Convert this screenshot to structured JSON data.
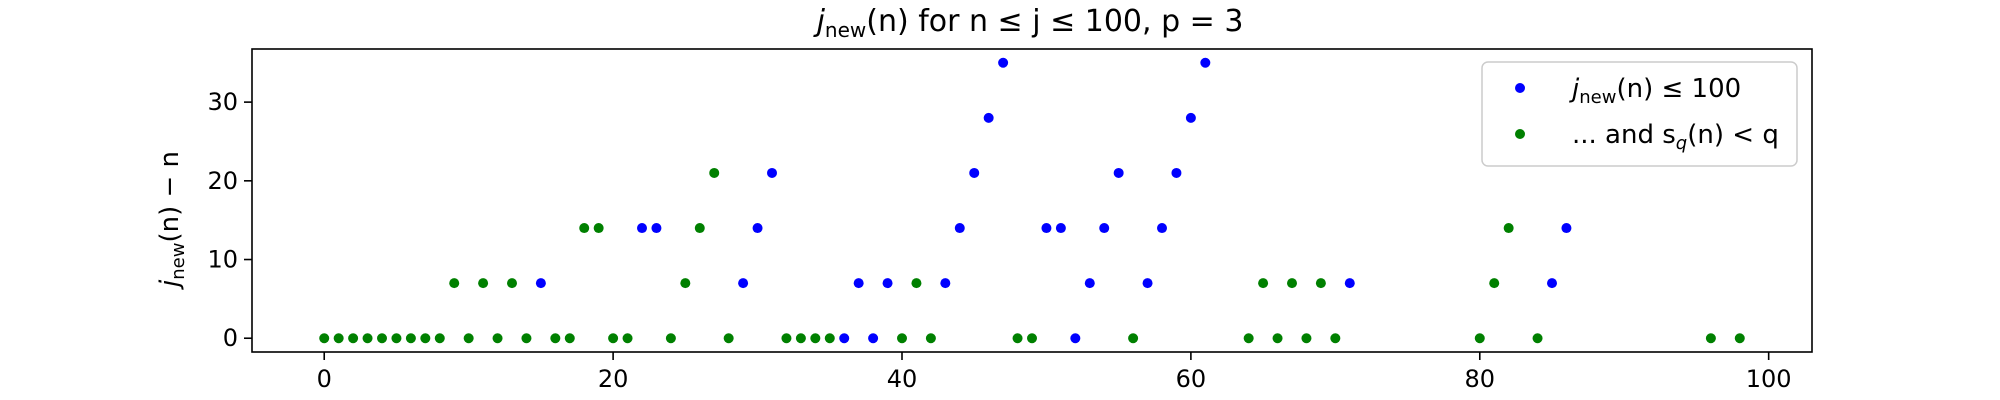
{
  "chart_data": {
    "type": "scatter",
    "title_parts": {
      "j": "j",
      "sub_new": "new",
      "rest": "(n) for n ≤ j ≤ 100, p = 3"
    },
    "ylabel_parts": {
      "j": "j",
      "sub_new": "new",
      "rest": "(n) − n"
    },
    "xlabel": "",
    "xlim": [
      -5,
      103
    ],
    "ylim": [
      -1.75,
      36.75
    ],
    "xticks": [
      0,
      20,
      40,
      60,
      80,
      100
    ],
    "yticks": [
      0,
      10,
      20,
      30
    ],
    "legend_position": "top-right",
    "series": [
      {
        "name_parts": {
          "j": "j",
          "sub": "new",
          "rest": "(n) ≤ 100"
        },
        "color": "#0000ff",
        "points": [
          [
            15,
            7
          ],
          [
            22,
            14
          ],
          [
            23,
            14
          ],
          [
            29,
            7
          ],
          [
            30,
            14
          ],
          [
            31,
            21
          ],
          [
            36,
            0
          ],
          [
            37,
            7
          ],
          [
            38,
            0
          ],
          [
            39,
            7
          ],
          [
            43,
            7
          ],
          [
            44,
            14
          ],
          [
            45,
            21
          ],
          [
            46,
            28
          ],
          [
            47,
            35
          ],
          [
            50,
            14
          ],
          [
            51,
            14
          ],
          [
            52,
            0
          ],
          [
            53,
            7
          ],
          [
            54,
            14
          ],
          [
            55,
            21
          ],
          [
            57,
            7
          ],
          [
            58,
            14
          ],
          [
            59,
            21
          ],
          [
            60,
            28
          ],
          [
            61,
            35
          ],
          [
            71,
            7
          ],
          [
            85,
            7
          ],
          [
            86,
            14
          ]
        ]
      },
      {
        "name_parts": {
          "prefix": "... and s",
          "sub": "q",
          "rest": "(n) < q"
        },
        "color": "#008000",
        "points": [
          [
            0,
            0
          ],
          [
            1,
            0
          ],
          [
            2,
            0
          ],
          [
            3,
            0
          ],
          [
            4,
            0
          ],
          [
            5,
            0
          ],
          [
            6,
            0
          ],
          [
            7,
            0
          ],
          [
            8,
            0
          ],
          [
            9,
            7
          ],
          [
            10,
            0
          ],
          [
            11,
            7
          ],
          [
            12,
            0
          ],
          [
            13,
            7
          ],
          [
            14,
            0
          ],
          [
            16,
            0
          ],
          [
            17,
            0
          ],
          [
            18,
            14
          ],
          [
            19,
            14
          ],
          [
            20,
            0
          ],
          [
            21,
            0
          ],
          [
            24,
            0
          ],
          [
            25,
            7
          ],
          [
            26,
            14
          ],
          [
            27,
            21
          ],
          [
            28,
            0
          ],
          [
            32,
            0
          ],
          [
            33,
            0
          ],
          [
            34,
            0
          ],
          [
            35,
            0
          ],
          [
            40,
            0
          ],
          [
            41,
            7
          ],
          [
            42,
            0
          ],
          [
            48,
            0
          ],
          [
            49,
            0
          ],
          [
            56,
            0
          ],
          [
            64,
            0
          ],
          [
            65,
            7
          ],
          [
            66,
            0
          ],
          [
            67,
            7
          ],
          [
            68,
            0
          ],
          [
            69,
            7
          ],
          [
            70,
            0
          ],
          [
            80,
            0
          ],
          [
            81,
            7
          ],
          [
            82,
            14
          ],
          [
            84,
            0
          ],
          [
            96,
            0
          ],
          [
            98,
            0
          ]
        ]
      }
    ]
  }
}
